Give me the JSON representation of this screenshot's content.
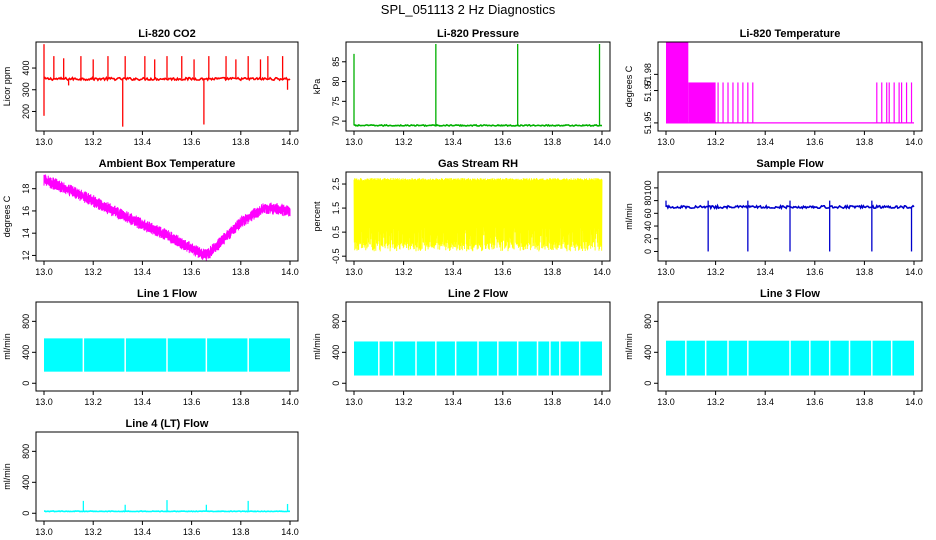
{
  "figure_title": "SPL_051113  2 Hz Diagnostics",
  "chart_data": [
    {
      "type": "line",
      "title": "Li-820 CO2",
      "xlabel": "",
      "ylabel": "Licor ppm",
      "xlim": [
        13.0,
        14.0
      ],
      "ylim": [
        110,
        520
      ],
      "x_ticks": [
        "13.0",
        "13.2",
        "13.4",
        "13.6",
        "13.8",
        "14.0"
      ],
      "y_ticks": [
        {
          "value": 200,
          "label": "200"
        },
        {
          "value": 300,
          "label": "300"
        },
        {
          "value": 400,
          "label": "400"
        }
      ],
      "color": "#ff0000",
      "series": [
        {
          "pattern": "baseline_spikes",
          "base": 350,
          "noise": 6,
          "spikes": [
            {
              "x": 13.0,
              "y": 510
            },
            {
              "x": 13.0,
              "y": 180
            },
            {
              "x": 13.04,
              "y": 455
            },
            {
              "x": 13.08,
              "y": 445
            },
            {
              "x": 13.1,
              "y": 320
            },
            {
              "x": 13.15,
              "y": 455
            },
            {
              "x": 13.2,
              "y": 440
            },
            {
              "x": 13.26,
              "y": 455
            },
            {
              "x": 13.32,
              "y": 130
            },
            {
              "x": 13.33,
              "y": 455
            },
            {
              "x": 13.41,
              "y": 455
            },
            {
              "x": 13.45,
              "y": 440
            },
            {
              "x": 13.5,
              "y": 455
            },
            {
              "x": 13.56,
              "y": 455
            },
            {
              "x": 13.61,
              "y": 440
            },
            {
              "x": 13.65,
              "y": 140
            },
            {
              "x": 13.67,
              "y": 455
            },
            {
              "x": 13.74,
              "y": 455
            },
            {
              "x": 13.78,
              "y": 440
            },
            {
              "x": 13.83,
              "y": 455
            },
            {
              "x": 13.88,
              "y": 440
            },
            {
              "x": 13.91,
              "y": 455
            },
            {
              "x": 13.97,
              "y": 455
            },
            {
              "x": 13.99,
              "y": 300
            }
          ]
        }
      ]
    },
    {
      "type": "line",
      "title": "Li-820 Pressure",
      "xlabel": "",
      "ylabel": "kPa",
      "xlim": [
        13.0,
        14.0
      ],
      "ylim": [
        67.5,
        90
      ],
      "x_ticks": [
        "13.0",
        "13.2",
        "13.4",
        "13.6",
        "13.8",
        "14.0"
      ],
      "y_ticks": [
        {
          "value": 70,
          "label": "70"
        },
        {
          "value": 75,
          "label": "75"
        },
        {
          "value": 80,
          "label": "80"
        },
        {
          "value": 85,
          "label": "85"
        }
      ],
      "color": "#00b000",
      "series": [
        {
          "pattern": "baseline_spikes",
          "base": 68.9,
          "noise": 0.15,
          "spikes": [
            {
              "x": 13.0,
              "y": 87
            },
            {
              "x": 13.33,
              "y": 89.5
            },
            {
              "x": 13.66,
              "y": 89.5
            },
            {
              "x": 13.99,
              "y": 89.5
            }
          ]
        }
      ]
    },
    {
      "type": "line",
      "title": "Li-820 Temperature",
      "xlabel": "",
      "ylabel": "degrees C",
      "xlim": [
        13.0,
        14.0
      ],
      "ylim": [
        51.945,
        52.0
      ],
      "x_ticks": [
        "13.0",
        "13.2",
        "13.4",
        "13.6",
        "13.8",
        "14.0"
      ],
      "y_ticks": [
        {
          "value": 51.95,
          "label": "51.95"
        },
        {
          "value": 51.97,
          "label": "51.97"
        },
        {
          "value": 51.98,
          "label": "51.98"
        }
      ],
      "color": "#ff00ff",
      "series": [
        {
          "pattern": "temperature_levels",
          "low": 51.95,
          "mid": 51.975,
          "high": 52.0,
          "high_block": [
            13.0,
            13.09
          ],
          "mid_block": [
            13.09,
            13.2
          ],
          "mid_lines": [
            13.21,
            13.23,
            13.25,
            13.27,
            13.29,
            13.31,
            13.33,
            13.35,
            13.85,
            13.87,
            13.89,
            13.9,
            13.92,
            13.94,
            13.95,
            13.97,
            13.99
          ]
        }
      ]
    },
    {
      "type": "line",
      "title": "Ambient Box Temperature",
      "xlabel": "",
      "ylabel": "degrees C",
      "xlim": [
        13.0,
        14.0
      ],
      "ylim": [
        11.5,
        19.5
      ],
      "x_ticks": [
        "13.0",
        "13.2",
        "13.4",
        "13.6",
        "13.8",
        "14.0"
      ],
      "y_ticks": [
        {
          "value": 12,
          "label": "12"
        },
        {
          "value": 14,
          "label": "14"
        },
        {
          "value": 16,
          "label": "16"
        },
        {
          "value": 18,
          "label": "18"
        }
      ],
      "color": "#ff00ff",
      "series": [
        {
          "pattern": "band",
          "width": 0.7,
          "x": [
            13.0,
            13.1,
            13.2,
            13.3,
            13.4,
            13.5,
            13.6,
            13.66,
            13.7,
            13.8,
            13.9,
            14.0
          ],
          "y": [
            18.8,
            17.9,
            16.9,
            15.8,
            14.8,
            13.8,
            12.6,
            12.0,
            12.8,
            15.0,
            16.3,
            16.0
          ]
        }
      ]
    },
    {
      "type": "line",
      "title": "Gas Stream RH",
      "xlabel": "",
      "ylabel": "percent",
      "xlim": [
        13.0,
        14.0
      ],
      "ylim": [
        -0.7,
        3.0
      ],
      "x_ticks": [
        "13.0",
        "13.2",
        "13.4",
        "13.6",
        "13.8",
        "14.0"
      ],
      "y_ticks": [
        {
          "value": -0.5,
          "label": "-0.5"
        },
        {
          "value": 0.5,
          "label": "0.5"
        },
        {
          "value": 1.5,
          "label": "1.5"
        },
        {
          "value": 2.5,
          "label": "2.5"
        }
      ],
      "color": "#ffff00",
      "series": [
        {
          "pattern": "oscillation",
          "low": -0.3,
          "high": 2.75,
          "low_jitter": 0.4,
          "high_jitter": 0.1
        }
      ]
    },
    {
      "type": "line",
      "title": "Sample Flow",
      "xlabel": "",
      "ylabel": "ml/min",
      "xlim": [
        13.0,
        14.0
      ],
      "ylim": [
        -15,
        125
      ],
      "x_ticks": [
        "13.0",
        "13.2",
        "13.4",
        "13.6",
        "13.8",
        "14.0"
      ],
      "y_ticks": [
        {
          "value": 0,
          "label": "0"
        },
        {
          "value": 20,
          "label": "20"
        },
        {
          "value": 40,
          "label": "40"
        },
        {
          "value": 60,
          "label": "60"
        },
        {
          "value": 80,
          "label": "80"
        },
        {
          "value": 100,
          "label": "100"
        }
      ],
      "color": "#0000cc",
      "series": [
        {
          "pattern": "baseline_spikes",
          "base": 70,
          "noise": 2,
          "spikes": [
            {
              "x": 13.0,
              "y": 80
            },
            {
              "x": 13.17,
              "y": 0
            },
            {
              "x": 13.17,
              "y": 80
            },
            {
              "x": 13.33,
              "y": 0
            },
            {
              "x": 13.33,
              "y": 80
            },
            {
              "x": 13.5,
              "y": 0
            },
            {
              "x": 13.5,
              "y": 80
            },
            {
              "x": 13.66,
              "y": 0
            },
            {
              "x": 13.66,
              "y": 80
            },
            {
              "x": 13.83,
              "y": 0
            },
            {
              "x": 13.83,
              "y": 80
            },
            {
              "x": 13.99,
              "y": 0
            }
          ]
        }
      ]
    },
    {
      "type": "line",
      "title": "Line 1 Flow",
      "xlabel": "",
      "ylabel": "ml/min",
      "xlim": [
        13.0,
        14.0
      ],
      "ylim": [
        -100,
        1050
      ],
      "x_ticks": [
        "13.0",
        "13.2",
        "13.4",
        "13.6",
        "13.8",
        "14.0"
      ],
      "y_ticks": [
        {
          "value": 0,
          "label": "0"
        },
        {
          "value": 400,
          "label": "400"
        },
        {
          "value": 800,
          "label": "800"
        }
      ],
      "color": "#00ffff",
      "series": [
        {
          "pattern": "flow_band",
          "low": 150,
          "high": 580,
          "gaps": [
            13.16,
            13.33,
            13.5,
            13.66,
            13.83
          ]
        }
      ]
    },
    {
      "type": "line",
      "title": "Line 2 Flow",
      "xlabel": "",
      "ylabel": "ml/min",
      "xlim": [
        13.0,
        14.0
      ],
      "ylim": [
        -100,
        1050
      ],
      "x_ticks": [
        "13.0",
        "13.2",
        "13.4",
        "13.6",
        "13.8",
        "14.0"
      ],
      "y_ticks": [
        {
          "value": 0,
          "label": "0"
        },
        {
          "value": 400,
          "label": "400"
        },
        {
          "value": 800,
          "label": "800"
        }
      ],
      "color": "#00ffff",
      "series": [
        {
          "pattern": "flow_band",
          "low": 100,
          "high": 540,
          "gaps": [
            13.1,
            13.16,
            13.25,
            13.33,
            13.41,
            13.5,
            13.58,
            13.66,
            13.74,
            13.79,
            13.83,
            13.91
          ]
        }
      ]
    },
    {
      "type": "line",
      "title": "Line 3 Flow",
      "xlabel": "",
      "ylabel": "ml/min",
      "xlim": [
        13.0,
        14.0
      ],
      "ylim": [
        -100,
        1050
      ],
      "x_ticks": [
        "13.0",
        "13.2",
        "13.4",
        "13.6",
        "13.8",
        "14.0"
      ],
      "y_ticks": [
        {
          "value": 0,
          "label": "0"
        },
        {
          "value": 400,
          "label": "400"
        },
        {
          "value": 800,
          "label": "800"
        }
      ],
      "color": "#00ffff",
      "series": [
        {
          "pattern": "flow_band",
          "low": 100,
          "high": 550,
          "gaps": [
            13.08,
            13.16,
            13.25,
            13.33,
            13.5,
            13.58,
            13.66,
            13.74,
            13.83,
            13.91
          ]
        }
      ]
    },
    {
      "type": "line",
      "title": "Line 4 (LT) Flow",
      "xlabel": "",
      "ylabel": "ml/min",
      "xlim": [
        13.0,
        14.0
      ],
      "ylim": [
        -100,
        1050
      ],
      "x_ticks": [
        "13.0",
        "13.2",
        "13.4",
        "13.6",
        "13.8",
        "14.0"
      ],
      "y_ticks": [
        {
          "value": 0,
          "label": "0"
        },
        {
          "value": 400,
          "label": "400"
        },
        {
          "value": 800,
          "label": "800"
        }
      ],
      "color": "#00ffff",
      "series": [
        {
          "pattern": "baseline_spikes",
          "base": 25,
          "noise": 4,
          "spikes": [
            {
              "x": 13.16,
              "y": 160
            },
            {
              "x": 13.33,
              "y": 110
            },
            {
              "x": 13.5,
              "y": 170
            },
            {
              "x": 13.66,
              "y": 110
            },
            {
              "x": 13.83,
              "y": 160
            },
            {
              "x": 13.99,
              "y": 120
            }
          ]
        }
      ]
    }
  ]
}
